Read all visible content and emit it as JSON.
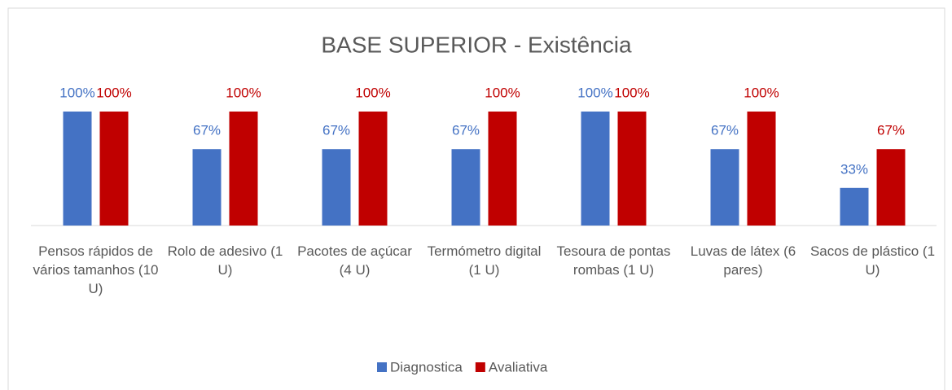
{
  "chart_data": {
    "type": "bar",
    "title": "BASE SUPERIOR - Existência",
    "categories": [
      "Pensos rápidos de vários tamanhos (10 U)",
      "Rolo de adesivo (1 U)",
      "Pacotes de açúcar (4 U)",
      "Termómetro digital (1 U)",
      "Tesoura de pontas rombas (1 U)",
      "Luvas de látex (6 pares)",
      "Sacos de plástico (1 U)"
    ],
    "series": [
      {
        "name": "Diagnostica",
        "color": "#4472c4",
        "values": [
          100,
          67,
          67,
          67,
          100,
          67,
          33
        ],
        "value_labels": [
          "100%",
          "67%",
          "67%",
          "67%",
          "100%",
          "67%",
          "33%"
        ]
      },
      {
        "name": "Avaliativa",
        "color": "#c00000",
        "values": [
          100,
          100,
          100,
          100,
          100,
          100,
          67
        ],
        "value_labels": [
          "100%",
          "100%",
          "100%",
          "100%",
          "100%",
          "100%",
          "67%"
        ]
      }
    ],
    "legend": "bottom"
  }
}
